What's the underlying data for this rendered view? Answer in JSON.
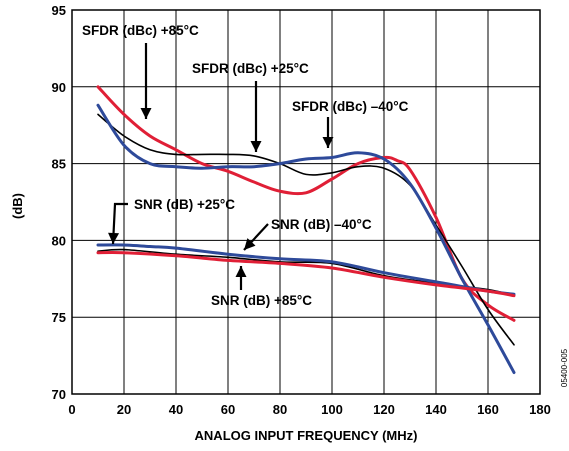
{
  "chart_data": {
    "type": "line",
    "xlabel": "ANALOG INPUT FREQUENCY (MHz)",
    "ylabel": "(dB)",
    "xlim": [
      0,
      180
    ],
    "ylim": [
      70,
      95
    ],
    "xticks": [
      0,
      20,
      40,
      60,
      80,
      100,
      120,
      140,
      160,
      180
    ],
    "yticks": [
      70,
      75,
      80,
      85,
      90,
      95
    ],
    "grid": true,
    "side_label": "05400-005",
    "colors": {
      "blue": "#2e4a9a",
      "red": "#e01f36",
      "black": "#000000"
    },
    "series": [
      {
        "key": "sfdr85",
        "color": "#e01f36",
        "x": [
          10,
          20,
          30,
          40,
          50,
          60,
          70,
          80,
          90,
          100,
          110,
          120,
          125,
          130,
          140,
          150,
          160,
          170
        ],
        "y": [
          90.0,
          88.2,
          86.8,
          85.9,
          85.0,
          84.5,
          83.8,
          83.2,
          83.1,
          84.0,
          85.0,
          85.4,
          85.2,
          84.6,
          81.5,
          77.5,
          75.8,
          74.8
        ]
      },
      {
        "key": "sfdr25",
        "color": "#000000",
        "x": [
          10,
          20,
          30,
          40,
          50,
          60,
          70,
          80,
          90,
          100,
          110,
          120,
          130,
          140,
          150,
          160,
          170
        ],
        "y": [
          88.2,
          86.8,
          85.9,
          85.6,
          85.6,
          85.6,
          85.5,
          85.0,
          84.3,
          84.4,
          84.8,
          84.7,
          83.6,
          81.0,
          78.3,
          75.5,
          73.2
        ]
      },
      {
        "key": "sfdrm40",
        "color": "#2e4a9a",
        "x": [
          10,
          20,
          30,
          40,
          50,
          60,
          70,
          80,
          90,
          100,
          110,
          120,
          130,
          140,
          150,
          160,
          170
        ],
        "y": [
          88.8,
          86.2,
          85.0,
          84.8,
          84.7,
          84.8,
          84.8,
          85.0,
          85.3,
          85.4,
          85.7,
          85.3,
          83.7,
          80.8,
          77.5,
          74.5,
          71.4
        ]
      },
      {
        "key": "snr25",
        "color": "#000000",
        "x": [
          10,
          20,
          40,
          60,
          80,
          100,
          120,
          140,
          160,
          170
        ],
        "y": [
          79.3,
          79.4,
          79.1,
          78.9,
          78.6,
          78.5,
          77.7,
          77.2,
          76.8,
          76.4
        ]
      },
      {
        "key": "snrm40",
        "color": "#2e4a9a",
        "x": [
          10,
          20,
          30,
          40,
          60,
          80,
          100,
          120,
          140,
          160,
          170
        ],
        "y": [
          79.7,
          79.7,
          79.6,
          79.5,
          79.1,
          78.8,
          78.6,
          77.9,
          77.3,
          76.7,
          76.5
        ]
      },
      {
        "key": "snr85",
        "color": "#e01f36",
        "x": [
          10,
          20,
          40,
          60,
          80,
          100,
          120,
          140,
          160,
          170
        ],
        "y": [
          79.2,
          79.2,
          79.0,
          78.7,
          78.5,
          78.2,
          77.6,
          77.1,
          76.7,
          76.4
        ]
      }
    ],
    "annotations": [
      {
        "text": "SFDR (dBc) +85°C"
      },
      {
        "text": "SFDR (dBc) +25°C"
      },
      {
        "text": "SFDR (dBc) –40°C"
      },
      {
        "text": "SNR (dB) +25°C"
      },
      {
        "text": "SNR (dB) –40°C"
      },
      {
        "text": "SNR (dB) +85°C"
      }
    ]
  }
}
